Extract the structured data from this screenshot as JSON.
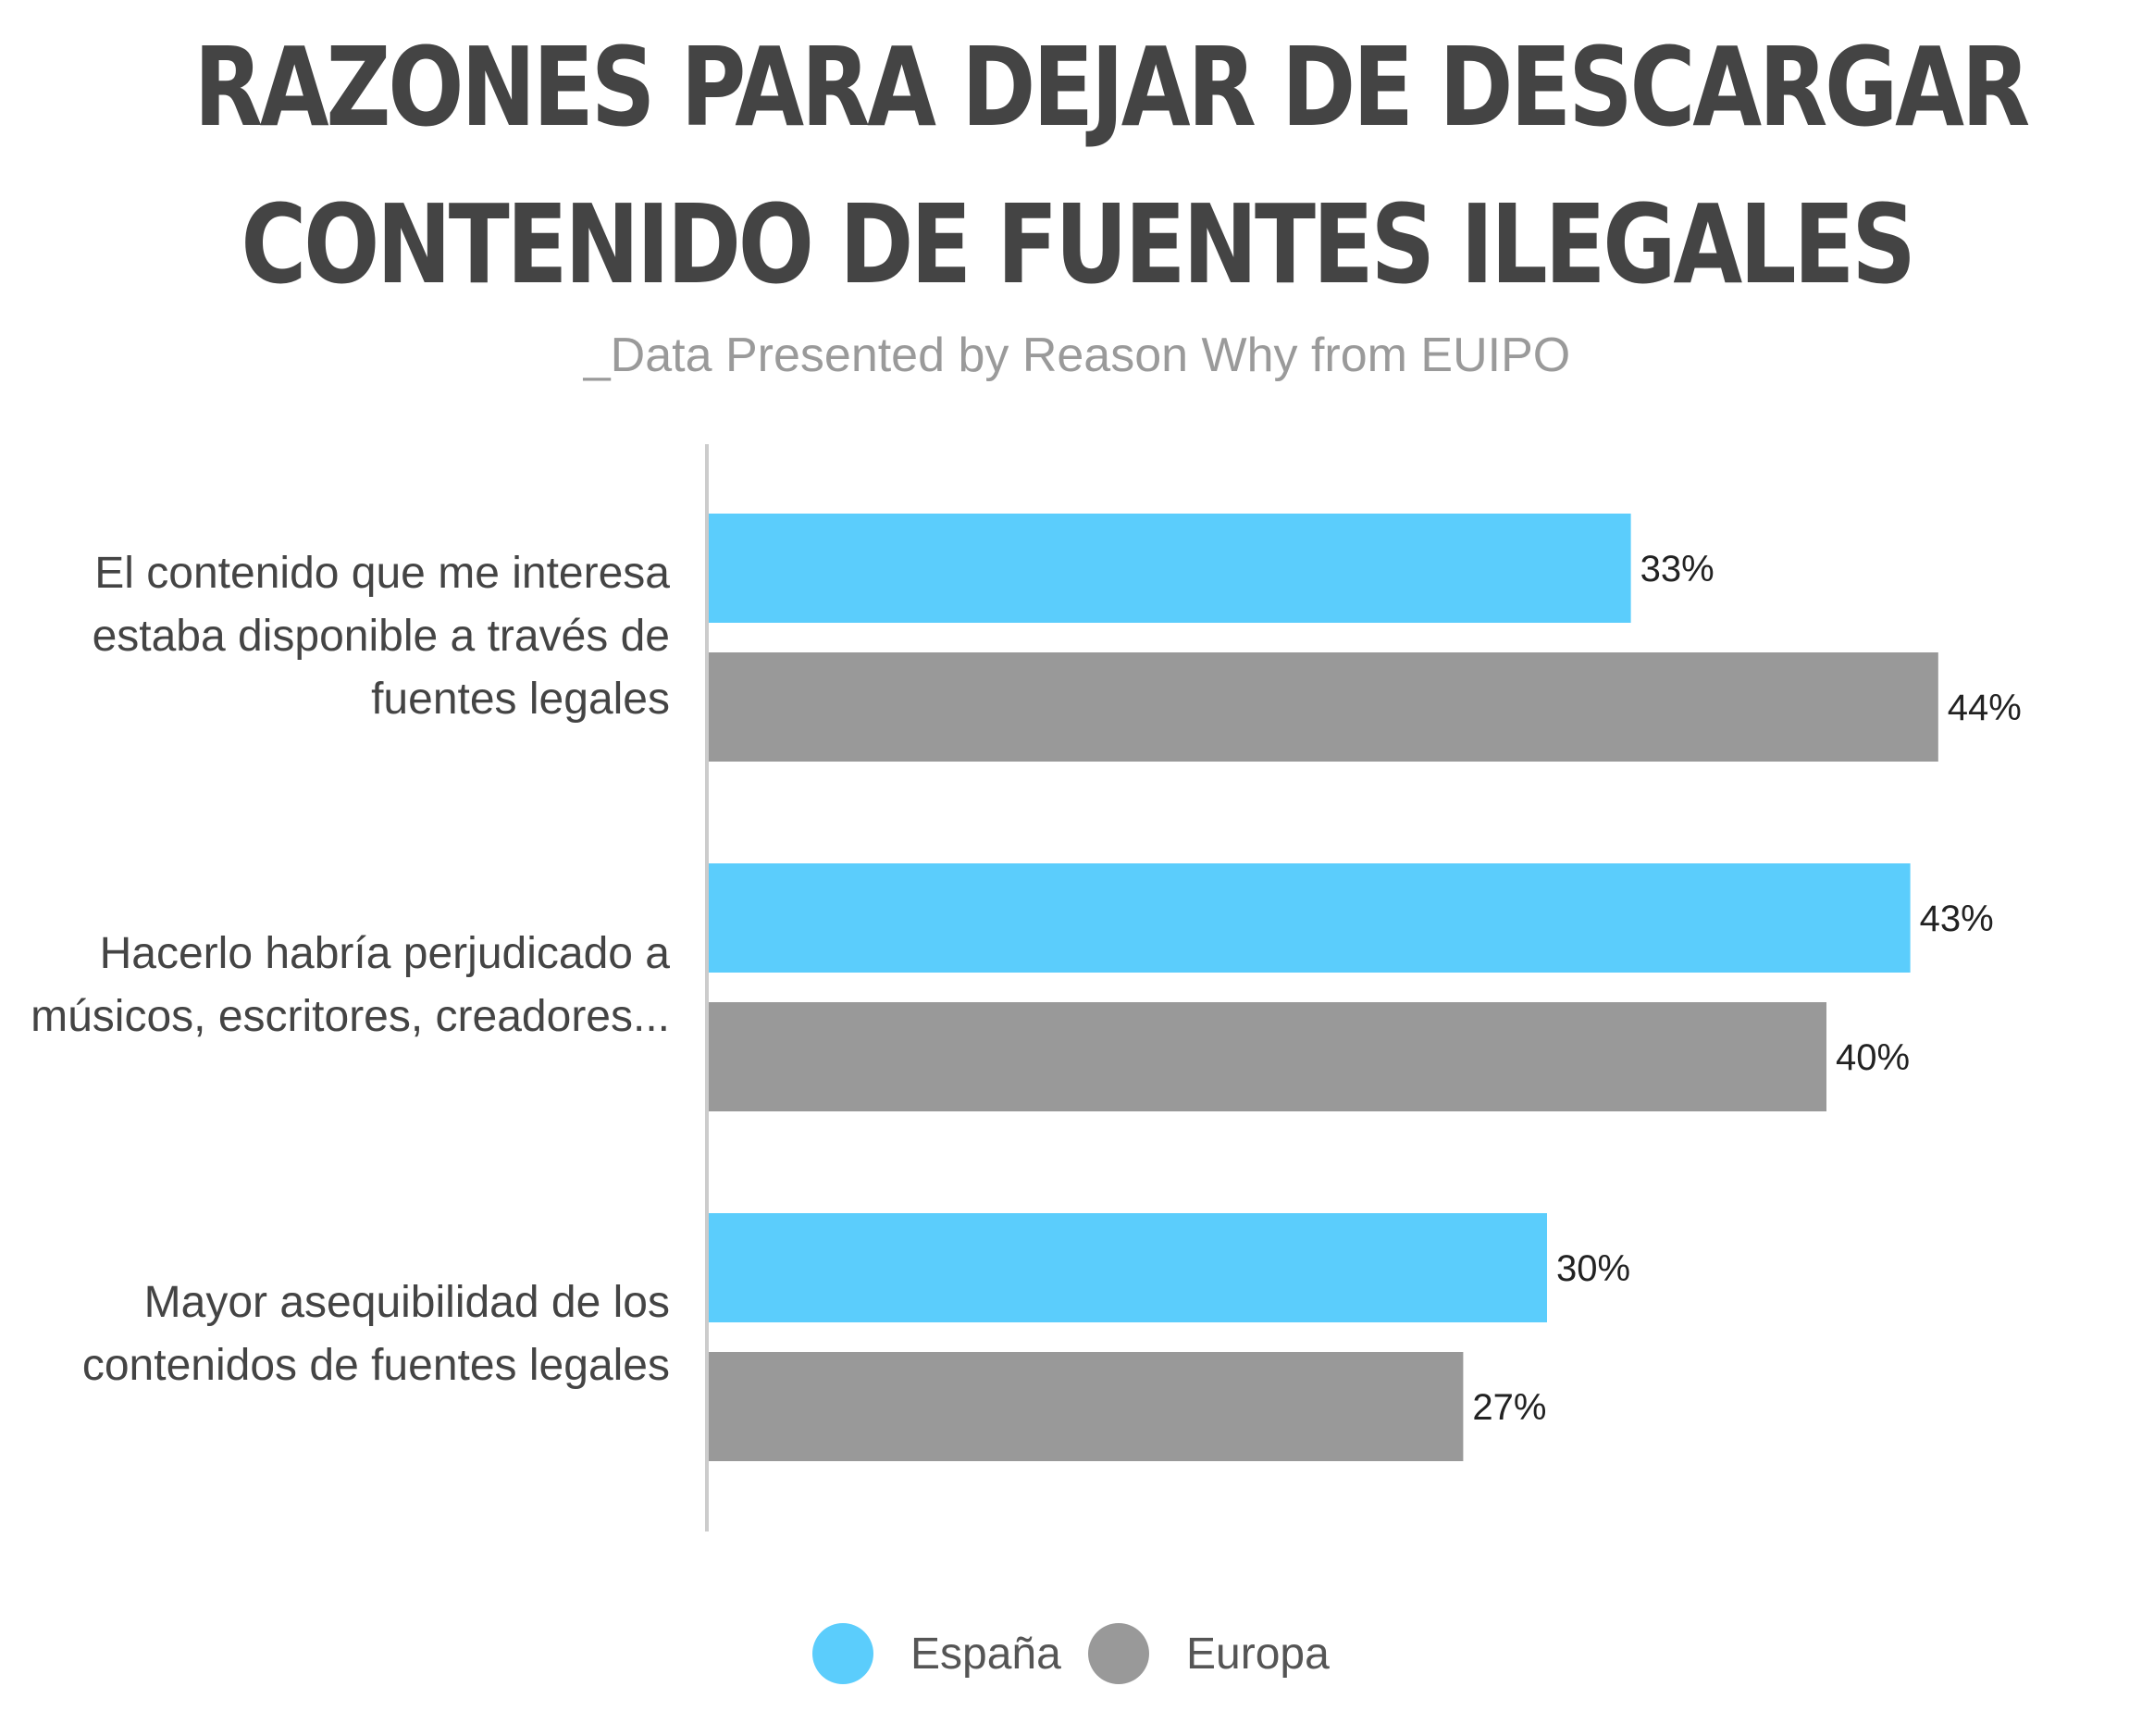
{
  "title_line_1": "RAZONES PARA DEJAR DE DESCARGAR",
  "title_line_2": "CONTENIDO DE FUENTES ILEGALES",
  "subtitle": "_Data Presented by Reason Why from EUIPO",
  "colors": {
    "espana": "#5bcdfc",
    "europa": "#999999",
    "axis": "#cccccc",
    "text": "#444444"
  },
  "chart_data": {
    "type": "bar",
    "orientation": "horizontal",
    "categories": [
      "El contenido que me interesa estaba disponible a través de fuentes legales",
      "Hacerlo habría perjudicado a músicos, escritores, creadores...",
      "Mayor asequibilidad de los contenidos de fuentes legales"
    ],
    "category_label_lines": [
      [
        "El contenido que me interesa",
        "estaba disponible a través de",
        "fuentes legales"
      ],
      [
        "Hacerlo habría perjudicado a",
        "músicos, escritores, creadores..."
      ],
      [
        "Mayor asequibilidad de los",
        "contenidos de fuentes legales"
      ]
    ],
    "series": [
      {
        "name": "España",
        "values": [
          33,
          43,
          30
        ],
        "labels": [
          "33%",
          "43%",
          "30%"
        ]
      },
      {
        "name": "Europa",
        "values": [
          44,
          40,
          27
        ],
        "labels": [
          "44%",
          "40%",
          "27%"
        ]
      }
    ],
    "unit": "%",
    "xlim": [
      0,
      50
    ],
    "grid": false,
    "legend": "bottom-center"
  }
}
